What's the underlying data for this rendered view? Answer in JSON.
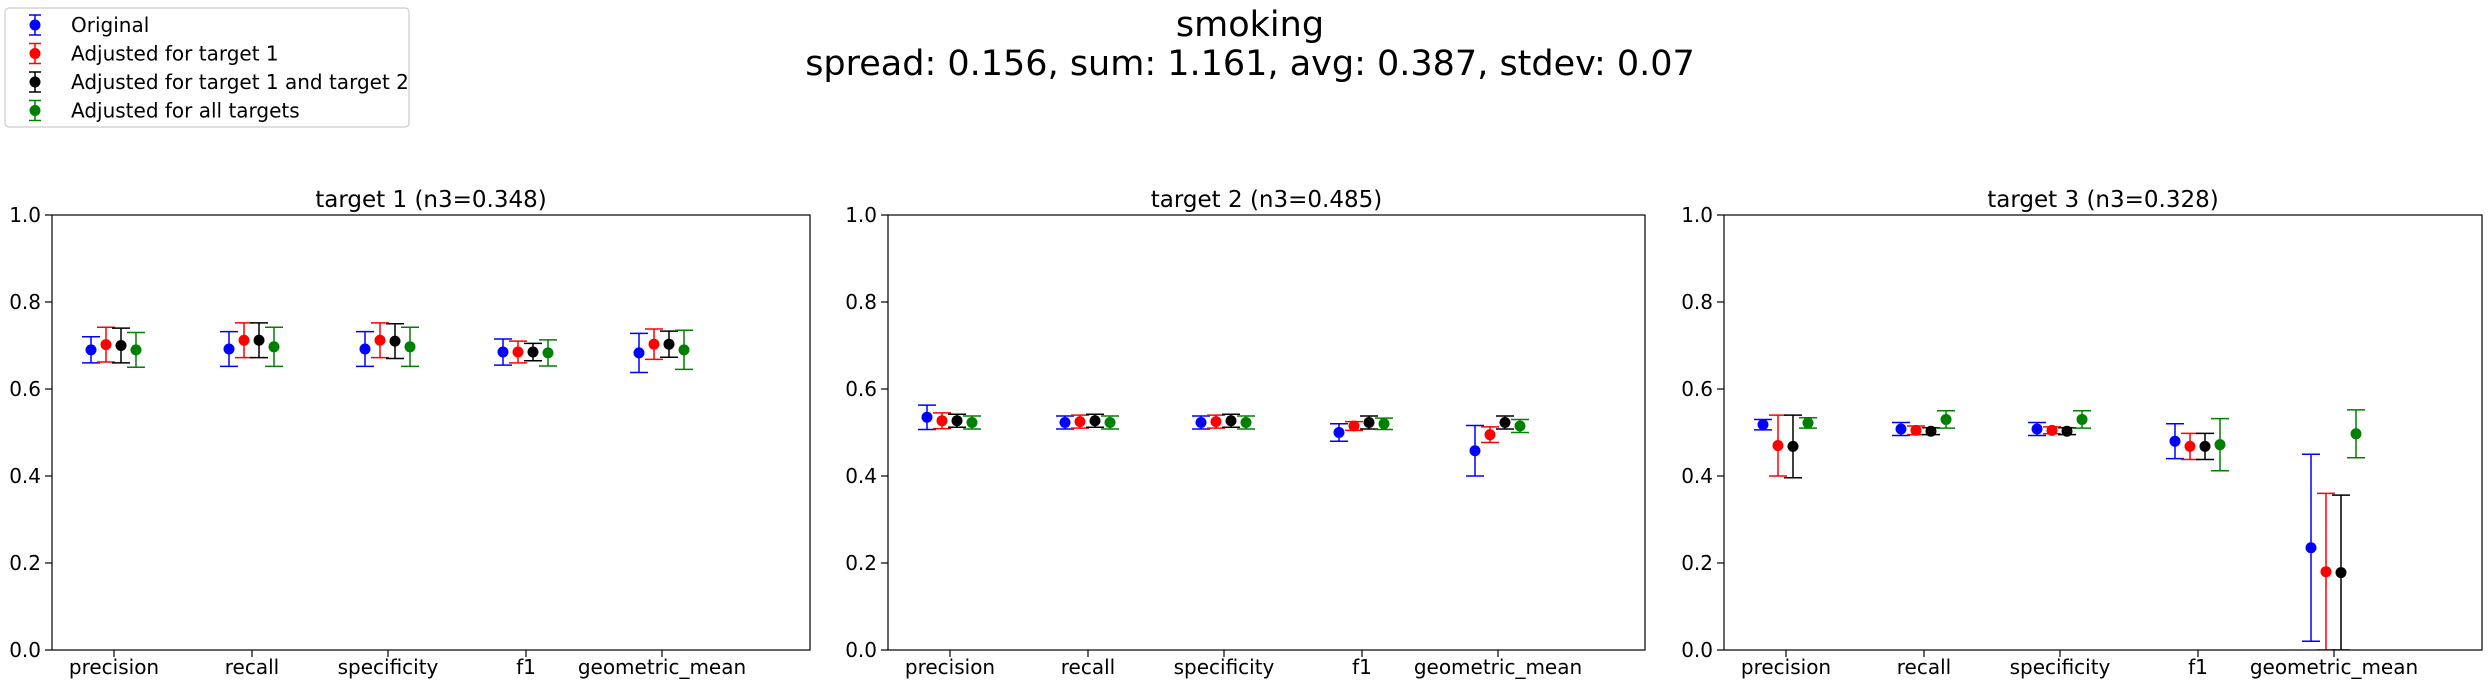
{
  "figure": {
    "title": "smoking",
    "subtitle": "spread: 0.156, sum: 1.161, avg: 0.387, stdev: 0.07"
  },
  "legend": [
    {
      "label": "Original",
      "color": "#0000ff"
    },
    {
      "label": "Adjusted for target 1",
      "color": "#ff0000"
    },
    {
      "label": "Adjusted for target 1 and target 2",
      "color": "#000000"
    },
    {
      "label": "Adjusted for all targets",
      "color": "#008000"
    }
  ],
  "chart_data": [
    {
      "type": "scatter",
      "title": "target 1 (n3=0.348)",
      "categories": [
        "precision",
        "recall",
        "specificity",
        "f1",
        "geometric_mean"
      ],
      "ylim": [
        0.0,
        1.0
      ],
      "yticks": [
        "0.0",
        "0.2",
        "0.4",
        "0.6",
        "0.8",
        "1.0"
      ],
      "series": [
        {
          "name": "Original",
          "values": [
            0.69,
            0.692,
            0.692,
            0.685,
            0.683
          ],
          "errors": [
            0.03,
            0.04,
            0.04,
            0.03,
            0.045
          ]
        },
        {
          "name": "Adjusted for target 1",
          "values": [
            0.702,
            0.712,
            0.712,
            0.685,
            0.703
          ],
          "errors": [
            0.04,
            0.04,
            0.04,
            0.025,
            0.035
          ]
        },
        {
          "name": "Adjusted for target 1 and target 2",
          "values": [
            0.7,
            0.712,
            0.71,
            0.685,
            0.703
          ],
          "errors": [
            0.04,
            0.04,
            0.04,
            0.02,
            0.03
          ]
        },
        {
          "name": "Adjusted for all targets",
          "values": [
            0.69,
            0.697,
            0.697,
            0.683,
            0.69
          ],
          "errors": [
            0.04,
            0.045,
            0.045,
            0.03,
            0.045
          ]
        }
      ]
    },
    {
      "type": "scatter",
      "title": "target 2 (n3=0.485)",
      "categories": [
        "precision",
        "recall",
        "specificity",
        "f1",
        "geometric_mean"
      ],
      "ylim": [
        0.0,
        1.0
      ],
      "yticks": [
        "0.0",
        "0.2",
        "0.4",
        "0.6",
        "0.8",
        "1.0"
      ],
      "series": [
        {
          "name": "Original",
          "values": [
            0.535,
            0.523,
            0.523,
            0.5,
            0.458
          ],
          "errors": [
            0.028,
            0.015,
            0.015,
            0.02,
            0.058
          ]
        },
        {
          "name": "Adjusted for target 1",
          "values": [
            0.527,
            0.525,
            0.525,
            0.515,
            0.495
          ],
          "errors": [
            0.018,
            0.015,
            0.015,
            0.01,
            0.018
          ]
        },
        {
          "name": "Adjusted for target 1 and target 2",
          "values": [
            0.527,
            0.527,
            0.527,
            0.523,
            0.523
          ],
          "errors": [
            0.015,
            0.015,
            0.015,
            0.015,
            0.015
          ]
        },
        {
          "name": "Adjusted for all targets",
          "values": [
            0.523,
            0.523,
            0.523,
            0.52,
            0.515
          ],
          "errors": [
            0.015,
            0.015,
            0.015,
            0.013,
            0.015
          ]
        }
      ]
    },
    {
      "type": "scatter",
      "title": "target 3 (n3=0.328)",
      "categories": [
        "precision",
        "recall",
        "specificity",
        "f1",
        "geometric_mean"
      ],
      "ylim": [
        0.0,
        1.0
      ],
      "yticks": [
        "0.0",
        "0.2",
        "0.4",
        "0.6",
        "0.8",
        "1.0"
      ],
      "series": [
        {
          "name": "Original",
          "values": [
            0.518,
            0.508,
            0.508,
            0.48,
            0.235
          ],
          "errors": [
            0.012,
            0.015,
            0.015,
            0.04,
            0.215
          ]
        },
        {
          "name": "Adjusted for target 1",
          "values": [
            0.47,
            0.505,
            0.505,
            0.468,
            0.18
          ],
          "errors": [
            0.07,
            0.01,
            0.008,
            0.03,
            0.18
          ]
        },
        {
          "name": "Adjusted for target 1 and target 2",
          "values": [
            0.468,
            0.503,
            0.503,
            0.468,
            0.178
          ],
          "errors": [
            0.072,
            0.008,
            0.008,
            0.03,
            0.178
          ]
        },
        {
          "name": "Adjusted for all targets",
          "values": [
            0.522,
            0.53,
            0.53,
            0.472,
            0.497
          ],
          "errors": [
            0.012,
            0.02,
            0.02,
            0.06,
            0.055
          ]
        }
      ]
    }
  ]
}
